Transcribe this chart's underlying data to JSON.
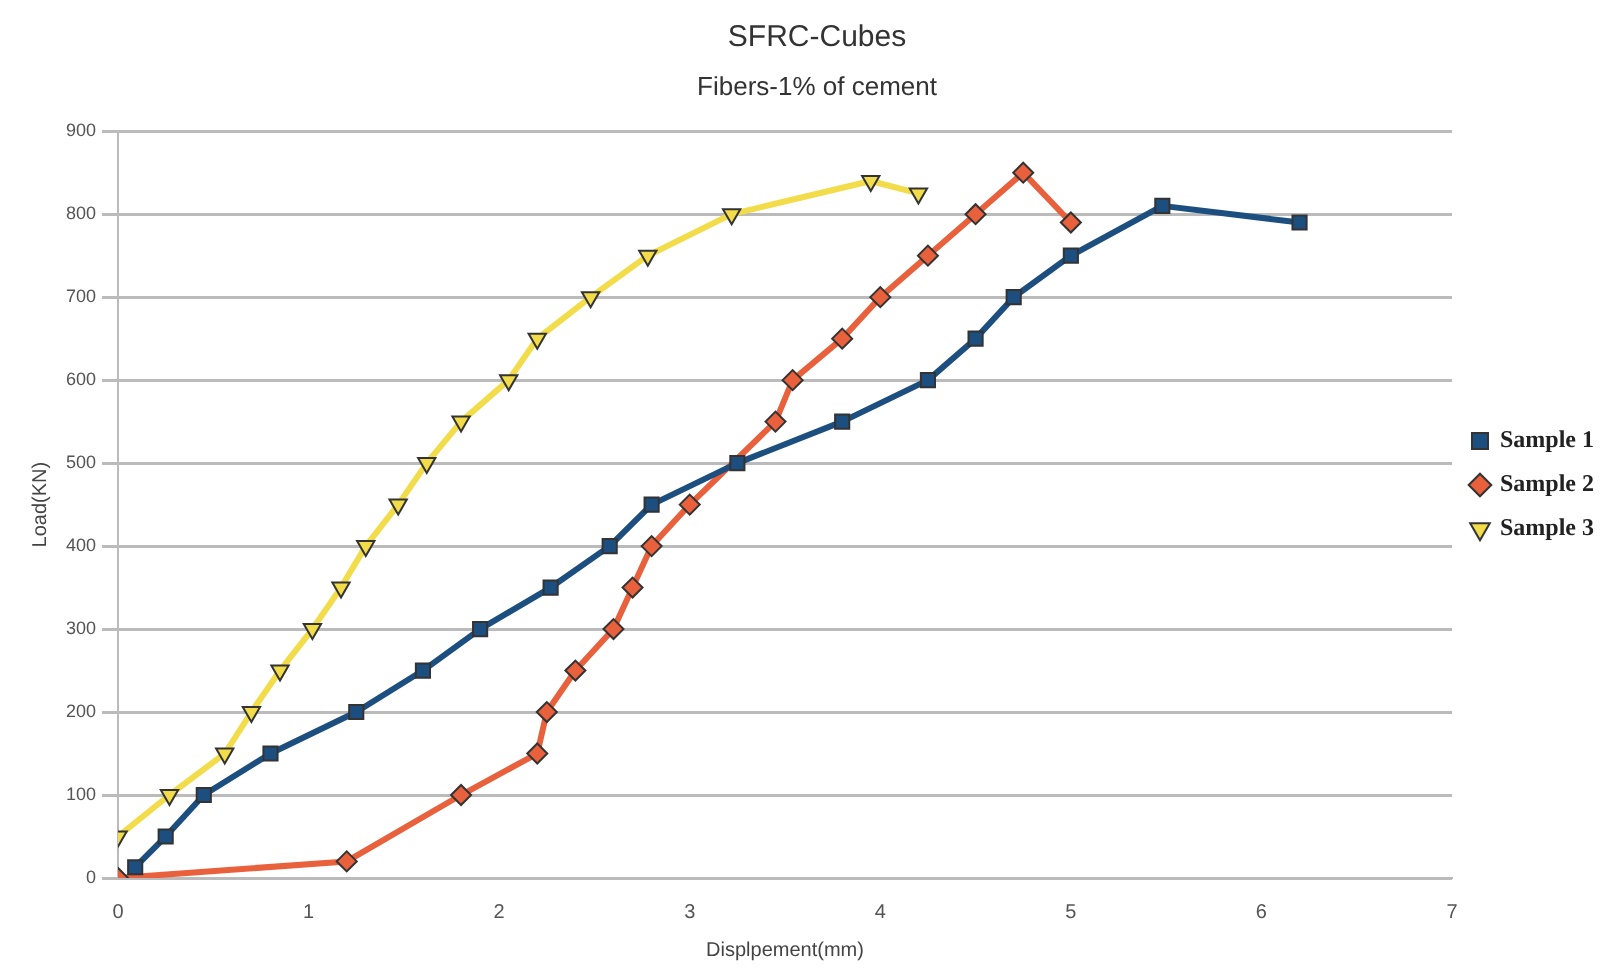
{
  "chart_data": {
    "type": "line",
    "title": "SFRC-Cubes",
    "subtitle": "Fibers-1% of cement",
    "xlabel": "Displpement(mm)",
    "ylabel": "Load(KN)",
    "xlim": [
      0,
      7
    ],
    "xticks": [
      0,
      1,
      2,
      3,
      4,
      5,
      6,
      7
    ],
    "ylim": [
      0,
      900
    ],
    "yticks": [
      0,
      100,
      200,
      300,
      400,
      500,
      600,
      700,
      800,
      900
    ],
    "grid": "y",
    "legend": "right",
    "line_style": "solid",
    "series": [
      {
        "name": "Sample 1",
        "color": "#1c4f80",
        "marker": "square",
        "x": [
          0.09,
          0.25,
          0.45,
          0.8,
          1.25,
          1.6,
          1.9,
          2.27,
          2.58,
          2.8,
          3.25,
          3.8,
          4.25,
          4.5,
          4.7,
          5.0,
          5.48,
          6.2
        ],
        "values": [
          13,
          50,
          100,
          150,
          200,
          250,
          300,
          350,
          400,
          450,
          500,
          550,
          600,
          650,
          700,
          750,
          810,
          790
        ]
      },
      {
        "name": "Sample 2",
        "color": "#e8603c",
        "marker": "diamond",
        "x": [
          0,
          1.2,
          1.8,
          2.2,
          2.25,
          2.4,
          2.6,
          2.7,
          2.8,
          3.0,
          3.45,
          3.54,
          3.8,
          4.0,
          4.25,
          4.5,
          4.75,
          5.0
        ],
        "values": [
          0,
          20,
          100,
          150,
          200,
          250,
          300,
          350,
          400,
          450,
          550,
          600,
          650,
          700,
          750,
          800,
          850,
          790
        ]
      },
      {
        "name": "Sample 3",
        "color": "#f2dc4a",
        "marker": "triangle",
        "x": [
          0,
          0.27,
          0.56,
          0.7,
          0.85,
          1.02,
          1.17,
          1.3,
          1.47,
          1.62,
          1.8,
          2.05,
          2.2,
          2.48,
          2.78,
          3.22,
          3.95,
          4.2
        ],
        "values": [
          50,
          100,
          150,
          200,
          250,
          300,
          350,
          400,
          450,
          500,
          550,
          600,
          650,
          700,
          750,
          800,
          840,
          825
        ]
      }
    ]
  }
}
